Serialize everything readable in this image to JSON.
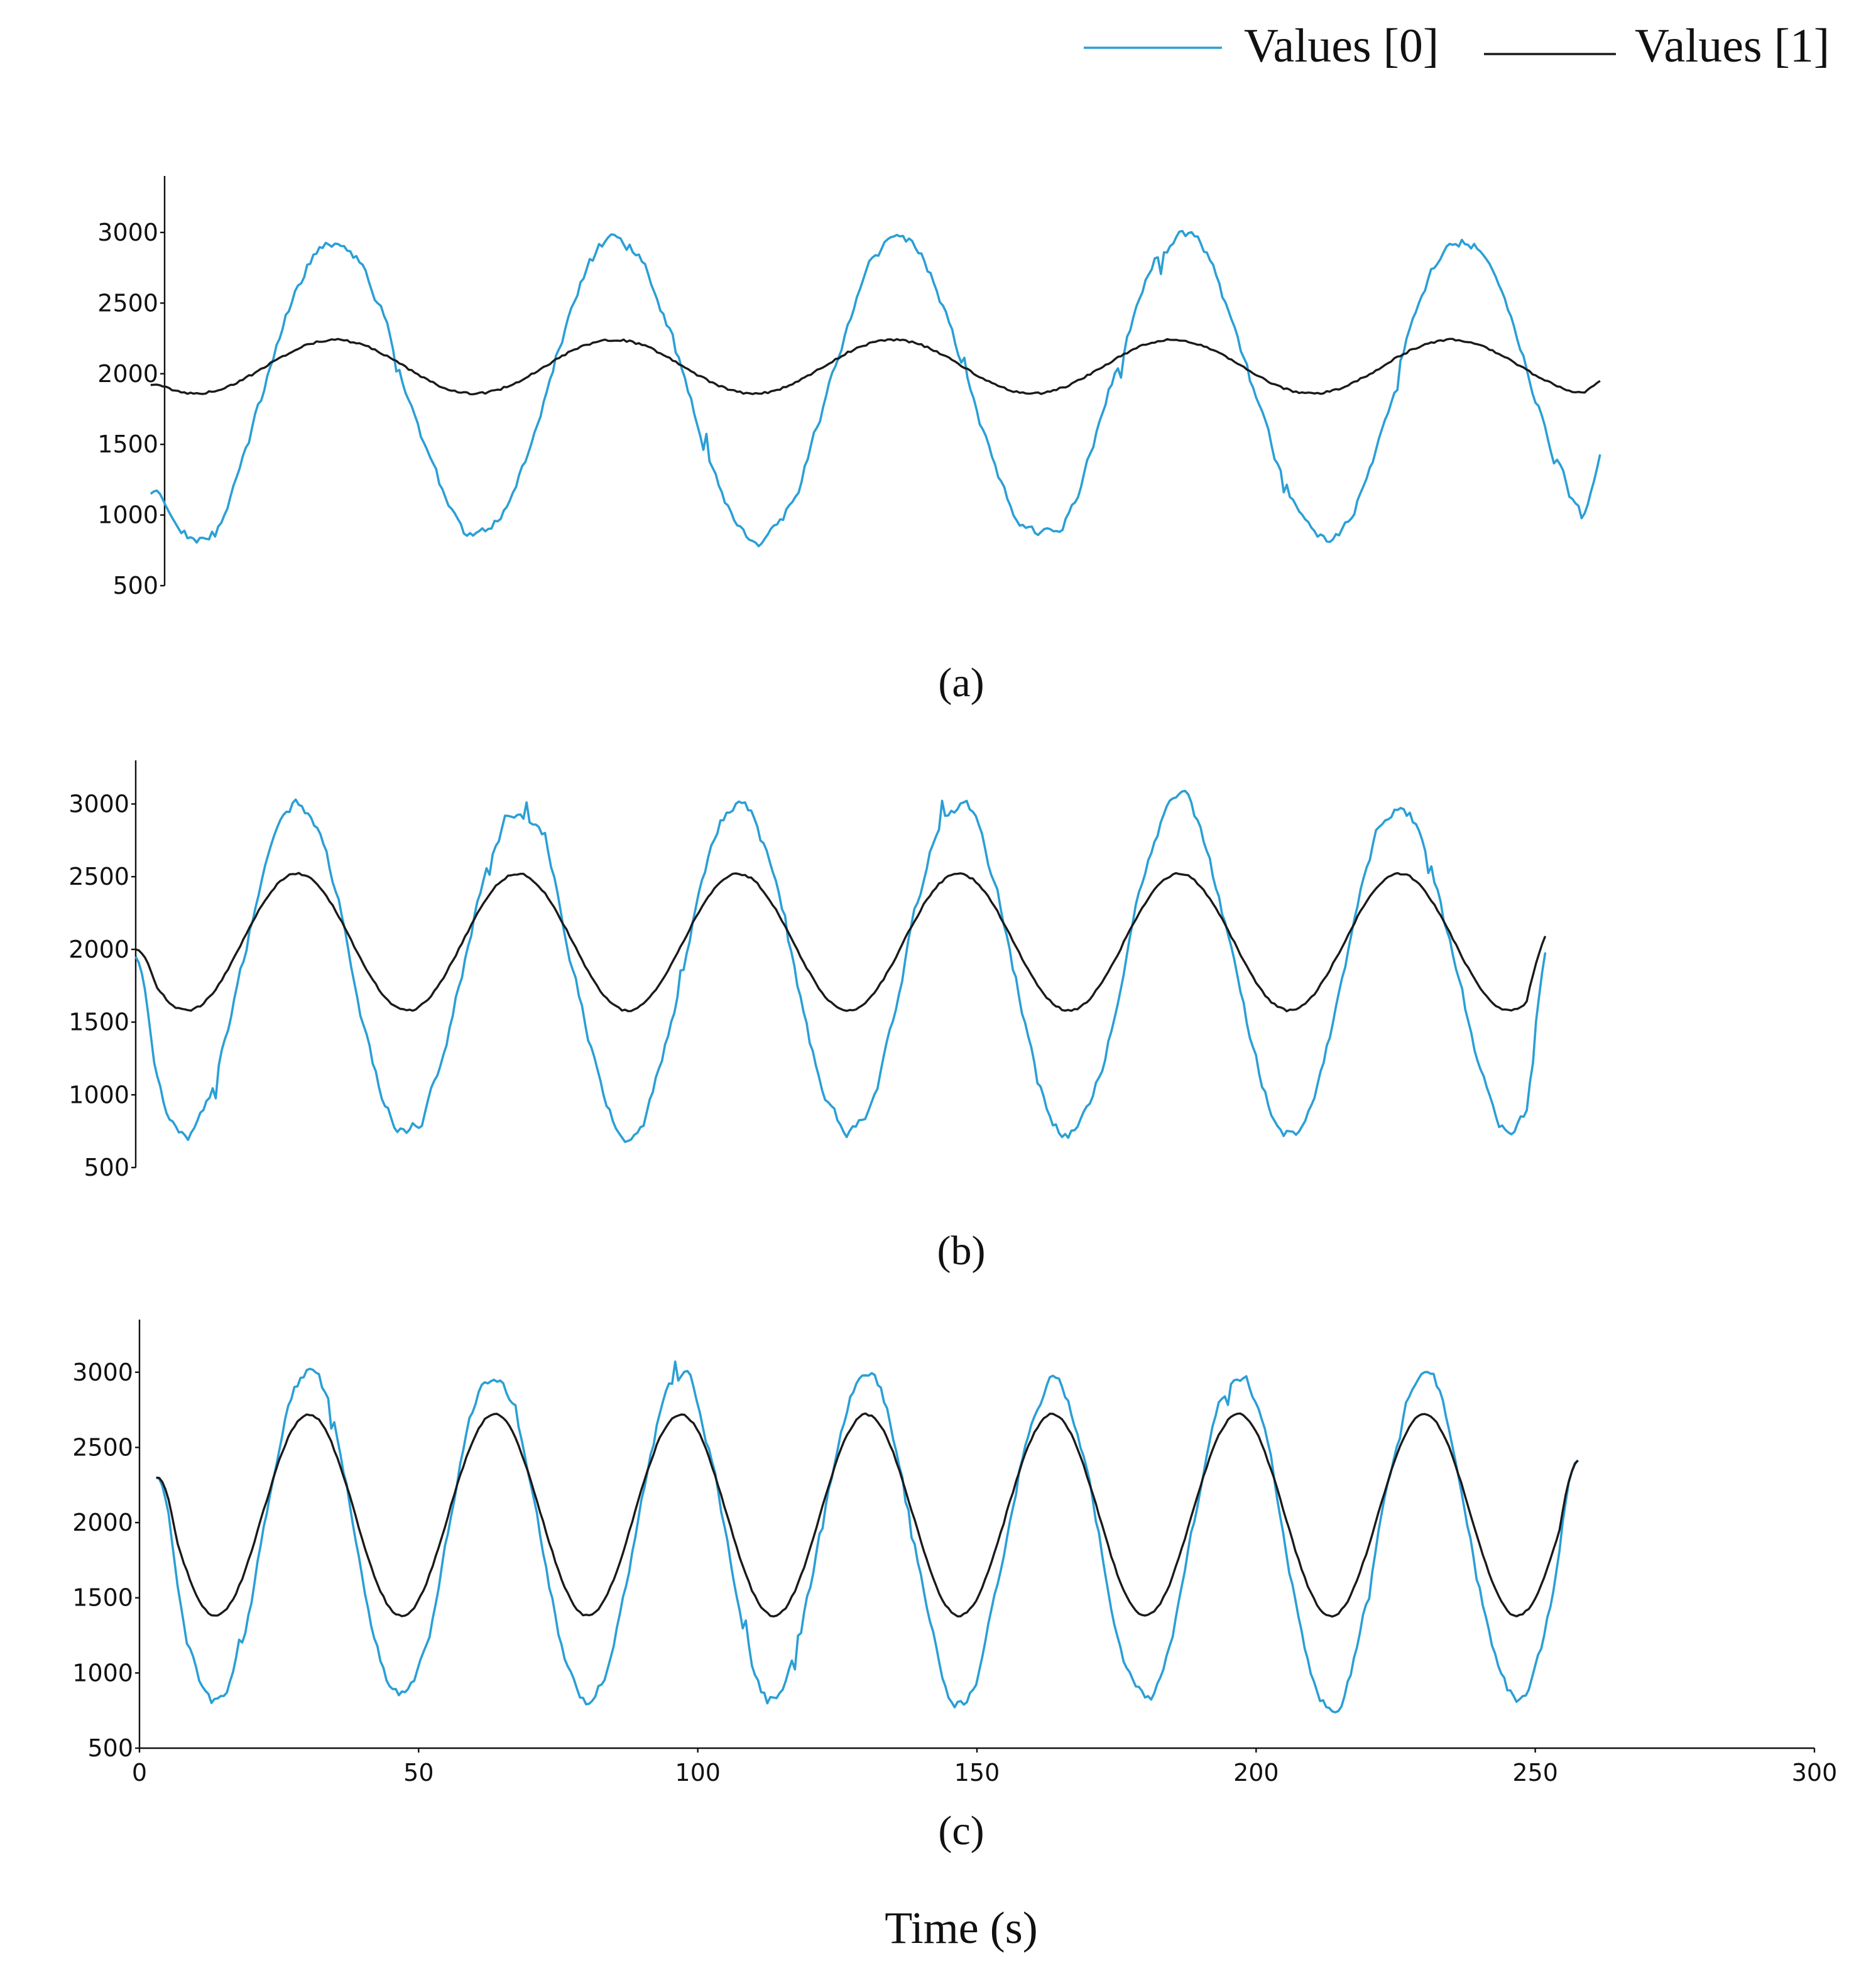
{
  "legend": {
    "items": [
      {
        "label": "Values [0]",
        "color": "#2a9fd6"
      },
      {
        "label": "Values [1]",
        "color": "#1a1a1a"
      }
    ]
  },
  "x_axis_title": "Time (s)",
  "chart_data": [
    {
      "type": "line",
      "panel_label": "(a)",
      "x_range": [
        2,
        262
      ],
      "ylim": [
        500,
        3400
      ],
      "yticks": [
        500,
        1000,
        1500,
        2000,
        2500,
        3000
      ],
      "xticks": [],
      "series": [
        {
          "name": "Values [0]",
          "color": "#2a9fd6",
          "period": 50.5,
          "phase": 22.5,
          "mean": 1900,
          "amp": 1070,
          "noise": 85,
          "start": 1150,
          "end": 1500
        },
        {
          "name": "Values [1]",
          "color": "#1a1a1a",
          "period": 50,
          "phase": 22.5,
          "mean": 2050,
          "amp": 190,
          "noise": 0,
          "start": 1920,
          "end": 1960
        }
      ]
    },
    {
      "type": "line",
      "panel_label": "(b)",
      "x_range": [
        0,
        252
      ],
      "ylim": [
        500,
        3300
      ],
      "yticks": [
        500,
        1000,
        1500,
        2000,
        2500,
        3000
      ],
      "xticks": [],
      "series": [
        {
          "name": "Values [0]",
          "color": "#2a9fd6",
          "period": 39.4,
          "phase": 19,
          "mean": 1870,
          "amp": 1130,
          "noise": 90,
          "start": 1950,
          "end": 2000
        },
        {
          "name": "Values [1]",
          "color": "#1a1a1a",
          "period": 39.4,
          "phase": 19,
          "mean": 2050,
          "amp": 470,
          "noise": 0,
          "start": 2000,
          "end": 2100
        }
      ]
    },
    {
      "type": "line",
      "panel_label": "(c)",
      "x_range": [
        3,
        258
      ],
      "xlim": [
        0,
        300
      ],
      "ylim": [
        500,
        3350
      ],
      "yticks": [
        500,
        1000,
        1500,
        2000,
        2500,
        3000
      ],
      "xticks": [
        0,
        50,
        100,
        150,
        200,
        250,
        300
      ],
      "series": [
        {
          "name": "Values [0]",
          "color": "#2a9fd6",
          "period": 33.3,
          "phase": 22,
          "mean": 1900,
          "amp": 1080,
          "noise": 80,
          "start": 2300,
          "end": 2420
        },
        {
          "name": "Values [1]",
          "color": "#1a1a1a",
          "period": 33.3,
          "phase": 22,
          "mean": 2050,
          "amp": 670,
          "noise": 0,
          "start": 2300,
          "end": 2420
        }
      ]
    }
  ]
}
